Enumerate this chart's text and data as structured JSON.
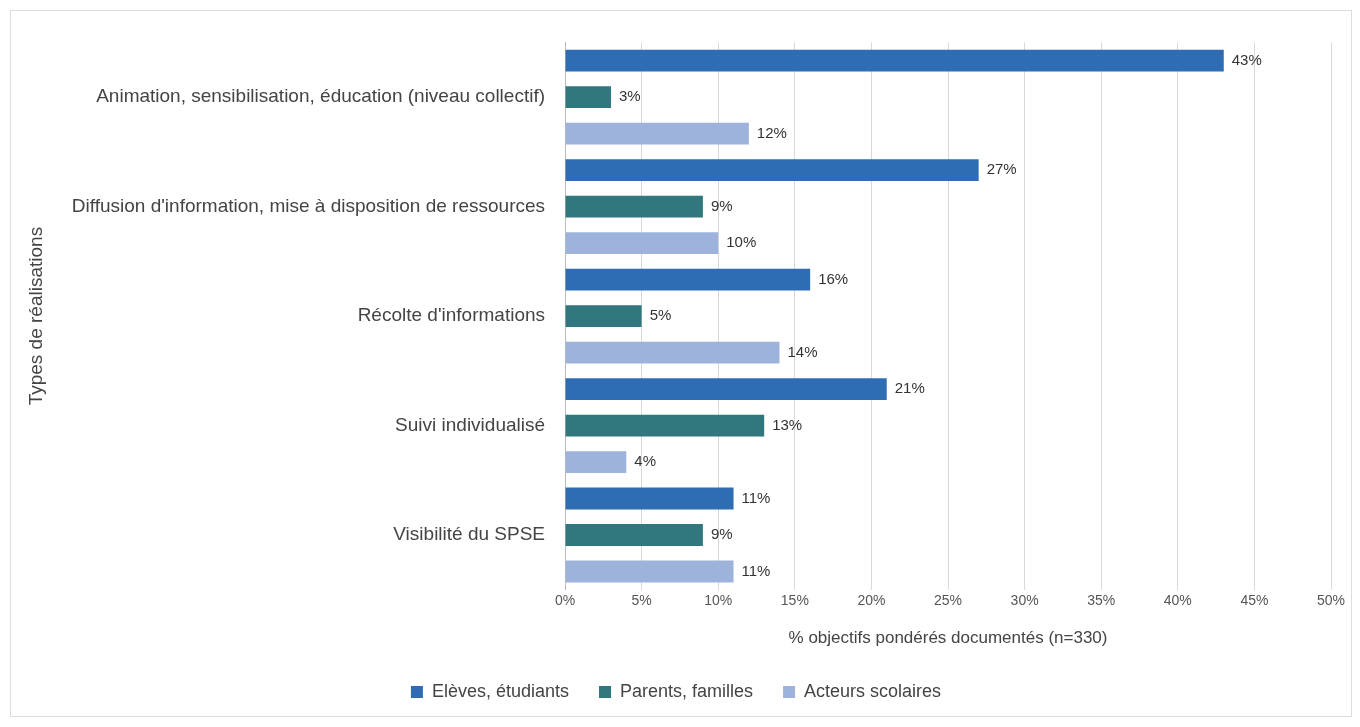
{
  "chart_data": {
    "type": "bar",
    "orientation": "horizontal",
    "ylabel": "Types de réalisations",
    "xlabel": "% objectifs pondérés documentés (n=330)",
    "categories": [
      "Animation, sensibilisation, éducation (niveau collectif)",
      "Diffusion d'information, mise à disposition de ressources",
      "Récolte d'informations",
      "Suivi individualisé",
      "Visibilité du SPSE"
    ],
    "series": [
      {
        "name": "Elèves, étudiants",
        "color": "#2e6db4",
        "values": [
          43,
          27,
          16,
          21,
          11
        ],
        "value_labels": [
          "43%",
          "27%",
          "16%",
          "21%",
          "11%"
        ]
      },
      {
        "name": "Parents, familles",
        "color": "#31777e",
        "values": [
          3,
          9,
          5,
          13,
          9
        ],
        "value_labels": [
          "3%",
          "9%",
          "5%",
          "13%",
          "9%"
        ]
      },
      {
        "name": "Acteurs scolaires",
        "color": "#9db3dc",
        "values": [
          12,
          10,
          14,
          4,
          11
        ],
        "value_labels": [
          "12%",
          "10%",
          "14%",
          "4%",
          "11%"
        ]
      }
    ],
    "xlim": [
      0,
      50
    ],
    "xticks": [
      {
        "value": 0,
        "label": "0%"
      },
      {
        "value": 5,
        "label": "5%"
      },
      {
        "value": 10,
        "label": "10%"
      },
      {
        "value": 15,
        "label": "15%"
      },
      {
        "value": 20,
        "label": "20%"
      },
      {
        "value": 25,
        "label": "25%"
      },
      {
        "value": 30,
        "label": "30%"
      },
      {
        "value": 35,
        "label": "35%"
      },
      {
        "value": 40,
        "label": "40%"
      },
      {
        "value": 45,
        "label": "45%"
      },
      {
        "value": 50,
        "label": "50%"
      }
    ],
    "grid": "x",
    "legend": "bottom"
  }
}
